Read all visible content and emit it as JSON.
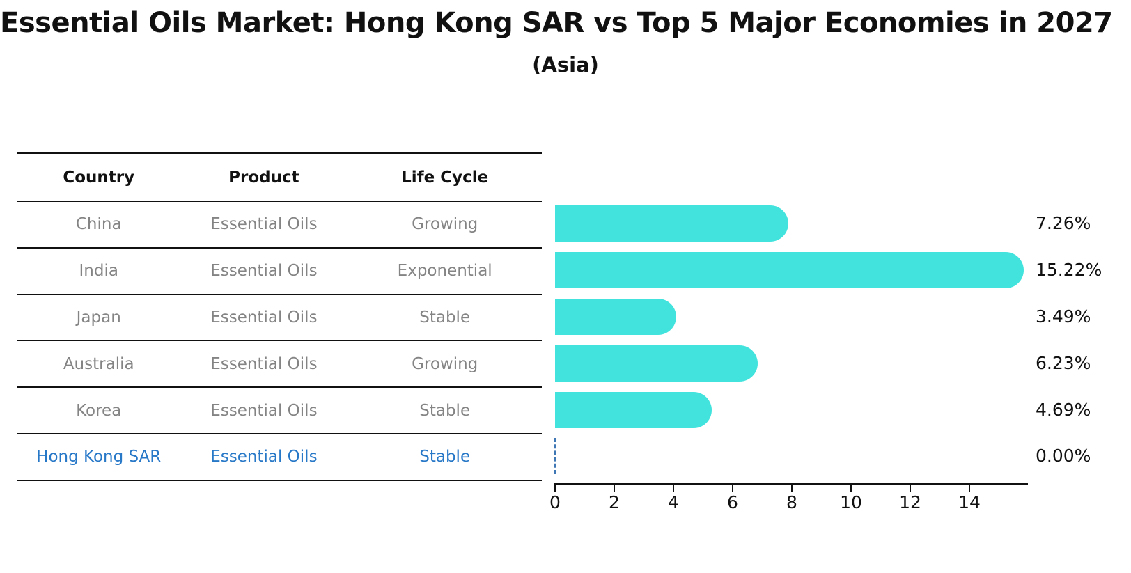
{
  "title": "Essential Oils Market: Hong Kong SAR vs Top 5 Major Economies in 2027",
  "subtitle": "(Asia)",
  "table": {
    "headers": [
      "Country",
      "Product",
      "Life Cycle"
    ],
    "rows": [
      {
        "country": "China",
        "product": "Essential Oils",
        "life_cycle": "Growing",
        "highlighted": false
      },
      {
        "country": "India",
        "product": "Essential Oils",
        "life_cycle": "Exponential",
        "highlighted": false
      },
      {
        "country": "Japan",
        "product": "Essential Oils",
        "life_cycle": "Stable",
        "highlighted": false
      },
      {
        "country": "Australia",
        "product": "Essential Oils",
        "life_cycle": "Growing",
        "highlighted": false
      },
      {
        "country": "Korea",
        "product": "Essential Oils",
        "life_cycle": "Stable",
        "highlighted": false
      },
      {
        "country": "Hong Kong SAR",
        "product": "Essential Oils",
        "life_cycle": "Stable",
        "highlighted": true
      }
    ]
  },
  "chart_data": {
    "type": "bar",
    "orientation": "horizontal",
    "title": "Essential Oils Market: Hong Kong SAR vs Top 5 Major Economies in 2027",
    "subtitle": "(Asia)",
    "categories": [
      "China",
      "India",
      "Japan",
      "Australia",
      "Korea",
      "Hong Kong SAR"
    ],
    "values": [
      7.26,
      15.22,
      3.49,
      6.23,
      4.69,
      0.0
    ],
    "value_labels": [
      "7.26%",
      "15.22%",
      "3.49%",
      "6.23%",
      "4.69%",
      "0.00%"
    ],
    "xlabel": "",
    "ylabel": "",
    "xlim": [
      0,
      16
    ],
    "xticks": [
      0,
      2,
      4,
      6,
      8,
      10,
      12,
      14
    ],
    "grid": false,
    "legend": "none"
  },
  "colors": {
    "bar": "#42e3dd",
    "zero_marker": "#3f76b4",
    "highlight_text": "#2878c8",
    "row_text": "#848484",
    "header_text": "#111111",
    "value_text": "#111111",
    "axis": "#111111"
  }
}
